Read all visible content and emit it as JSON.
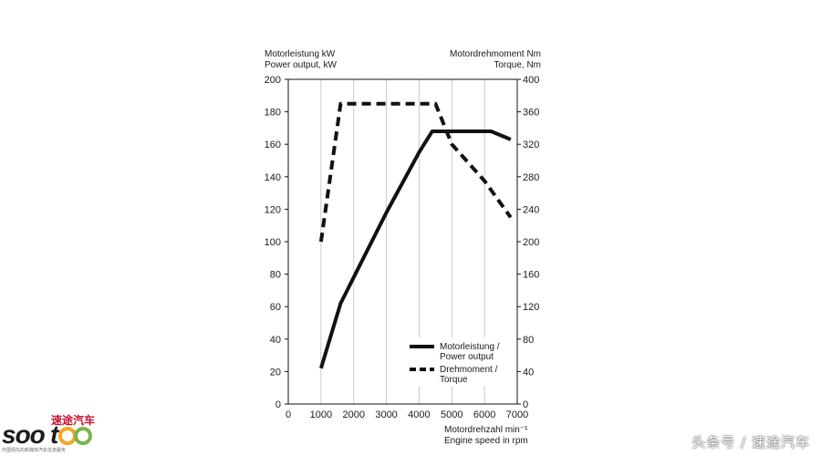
{
  "chart_data": {
    "type": "line",
    "left_axis_title": [
      "Motorleistung kW",
      "Power output, kW"
    ],
    "right_axis_title": [
      "Motordrehmoment Nm",
      "Torque, Nm"
    ],
    "x_axis_title": [
      "Motordrehzahl min⁻¹",
      "Engine speed in rpm"
    ],
    "xlim": [
      0,
      7000
    ],
    "xticks": [
      0,
      1000,
      2000,
      3000,
      4000,
      5000,
      6000,
      7000
    ],
    "ylim_left": [
      0,
      200
    ],
    "yticks_left": [
      0,
      20,
      40,
      60,
      80,
      100,
      120,
      140,
      160,
      180,
      200
    ],
    "ylim_right": [
      0,
      400
    ],
    "yticks_right": [
      0,
      40,
      80,
      120,
      160,
      200,
      240,
      280,
      320,
      360,
      400
    ],
    "grid": "vertical",
    "legend_position": "bottom-right",
    "series": [
      {
        "name": "Motorleistung / Power output",
        "legend_lines": [
          "Motorleistung /",
          "Power output"
        ],
        "axis": "left",
        "style": "solid",
        "points": [
          [
            1000,
            22
          ],
          [
            1600,
            62
          ],
          [
            2000,
            78
          ],
          [
            3000,
            118
          ],
          [
            4000,
            155
          ],
          [
            4400,
            168
          ],
          [
            6200,
            168
          ],
          [
            6800,
            163
          ]
        ]
      },
      {
        "name": "Drehmoment / Torque",
        "legend_lines": [
          "Drehmoment /",
          "Torque"
        ],
        "axis": "right",
        "style": "dashed",
        "points": [
          [
            1000,
            200
          ],
          [
            1600,
            370
          ],
          [
            4500,
            370
          ],
          [
            5000,
            320
          ],
          [
            6000,
            275
          ],
          [
            6800,
            230
          ]
        ]
      }
    ]
  },
  "branding": {
    "logo_text": "sootoo",
    "logo_cn": "速途汽车",
    "logo_sub": "中国领先的新媒体汽车信息服务",
    "watermark": "头条号 / 速途汽车"
  },
  "colors": {
    "line": "#111111",
    "grid": "#c8c8c8",
    "logo_red": "#d6202e",
    "logo_orange": "#f5a623",
    "logo_green": "#7ab648"
  }
}
